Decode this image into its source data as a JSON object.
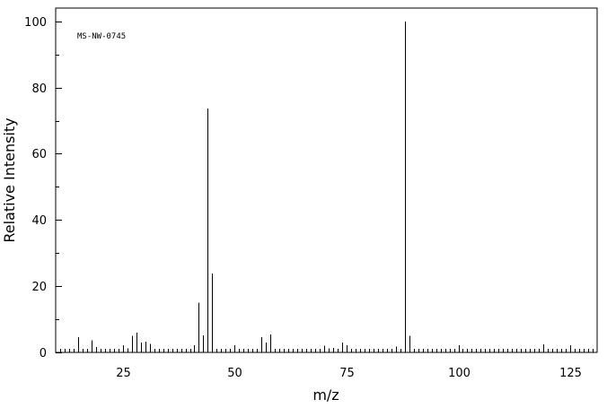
{
  "chart_data": {
    "type": "bar",
    "annotation": "MS-NW-0745",
    "xlabel": "m/z",
    "ylabel": "Relative Intensity",
    "xlim": [
      10,
      131
    ],
    "ylim": [
      0,
      104
    ],
    "x_major_ticks": [
      25,
      50,
      75,
      100,
      125
    ],
    "y_major_ticks": [
      0,
      20,
      40,
      60,
      80,
      100
    ],
    "x_minor_step": 1,
    "y_minor_step": 10,
    "grid": false,
    "peaks": [
      {
        "mz": 14,
        "intensity": 0.8
      },
      {
        "mz": 15,
        "intensity": 4.6
      },
      {
        "mz": 16,
        "intensity": 0.8
      },
      {
        "mz": 17,
        "intensity": 1.0
      },
      {
        "mz": 18,
        "intensity": 3.6
      },
      {
        "mz": 19,
        "intensity": 1.6
      },
      {
        "mz": 26,
        "intensity": 1.2
      },
      {
        "mz": 27,
        "intensity": 5.0
      },
      {
        "mz": 28,
        "intensity": 6.0
      },
      {
        "mz": 29,
        "intensity": 3.0
      },
      {
        "mz": 30,
        "intensity": 3.2
      },
      {
        "mz": 31,
        "intensity": 2.6
      },
      {
        "mz": 32,
        "intensity": 0.8
      },
      {
        "mz": 40,
        "intensity": 0.6
      },
      {
        "mz": 41,
        "intensity": 2.2
      },
      {
        "mz": 42,
        "intensity": 15.0
      },
      {
        "mz": 43,
        "intensity": 5.2
      },
      {
        "mz": 44,
        "intensity": 73.6
      },
      {
        "mz": 45,
        "intensity": 23.8
      },
      {
        "mz": 46,
        "intensity": 0.8
      },
      {
        "mz": 55,
        "intensity": 0.8
      },
      {
        "mz": 56,
        "intensity": 4.6
      },
      {
        "mz": 57,
        "intensity": 3.0
      },
      {
        "mz": 58,
        "intensity": 5.4
      },
      {
        "mz": 59,
        "intensity": 0.8
      },
      {
        "mz": 70,
        "intensity": 2.0
      },
      {
        "mz": 71,
        "intensity": 1.2
      },
      {
        "mz": 72,
        "intensity": 1.4
      },
      {
        "mz": 73,
        "intensity": 1.0
      },
      {
        "mz": 74,
        "intensity": 3.0
      },
      {
        "mz": 86,
        "intensity": 1.8
      },
      {
        "mz": 87,
        "intensity": 1.0
      },
      {
        "mz": 88,
        "intensity": 100.0
      },
      {
        "mz": 89,
        "intensity": 5.0
      },
      {
        "mz": 90,
        "intensity": 0.6
      },
      {
        "mz": 118,
        "intensity": 1.0
      },
      {
        "mz": 119,
        "intensity": 2.4
      },
      {
        "mz": 120,
        "intensity": 0.6
      }
    ]
  }
}
